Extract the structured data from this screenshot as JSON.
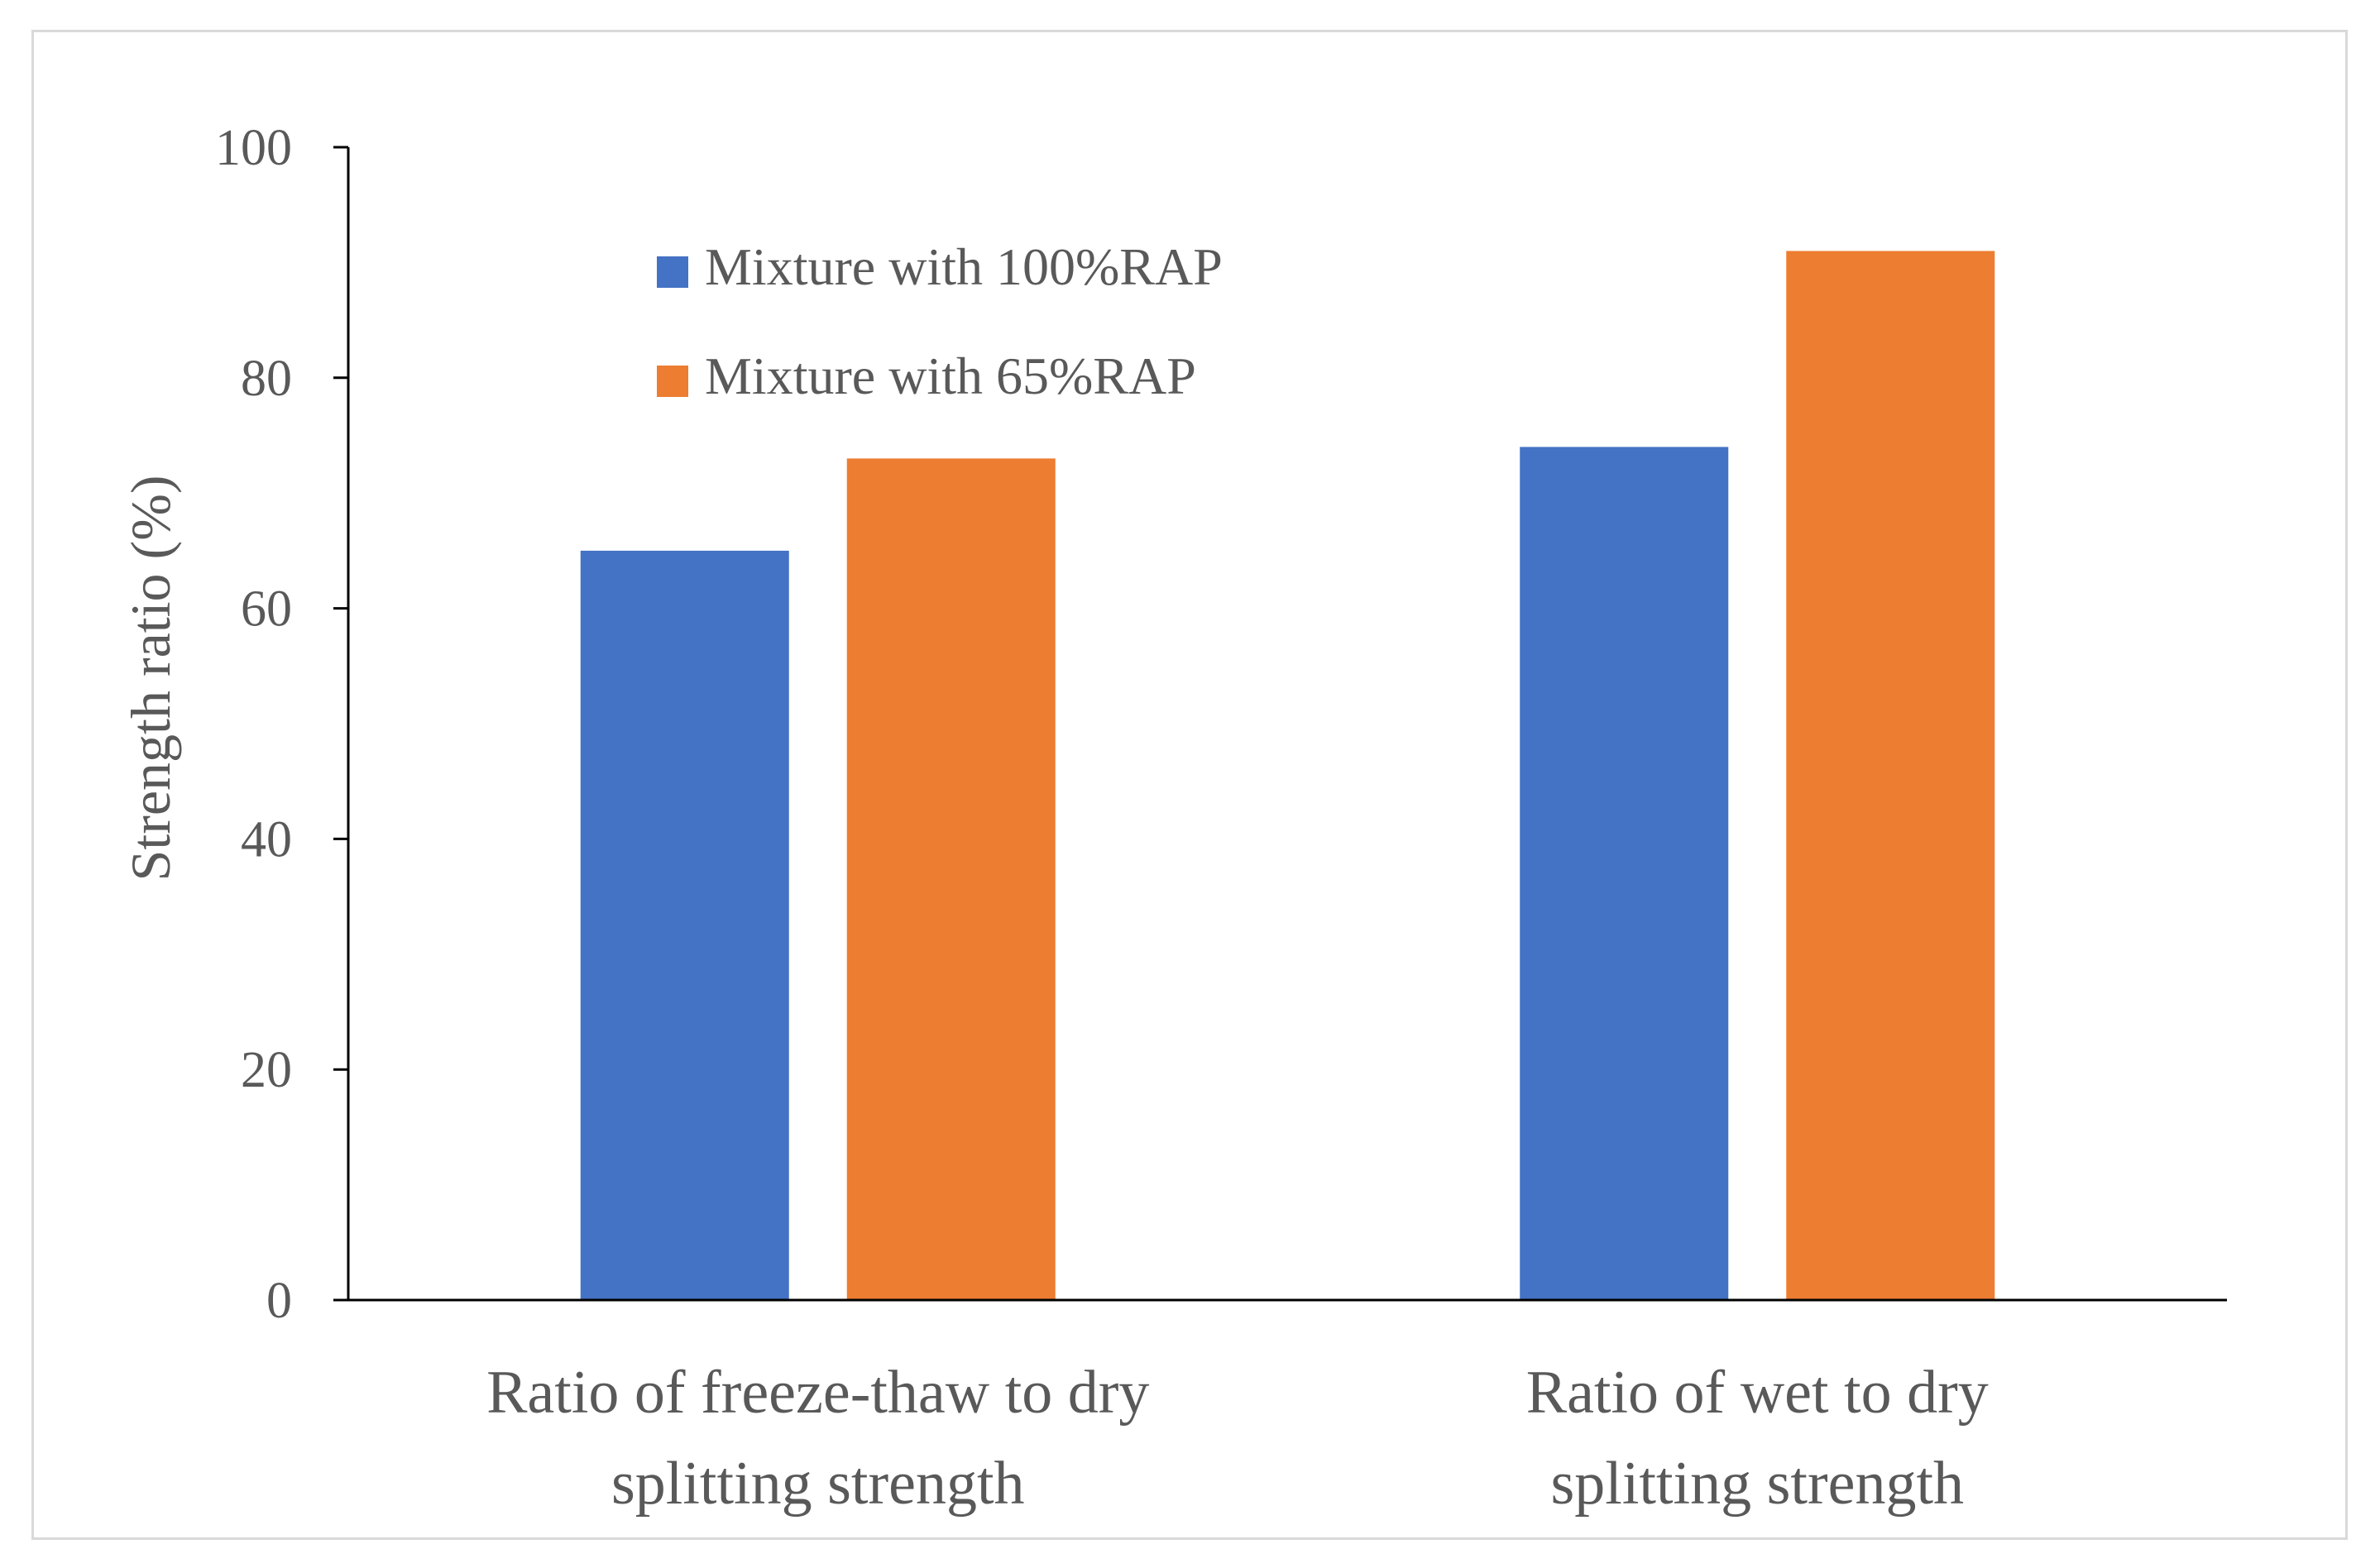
{
  "chart_data": {
    "type": "bar",
    "title": "",
    "xlabel": "",
    "ylabel": "Strength  ratio (%)",
    "ylim": [
      0,
      100
    ],
    "yticks": [
      0,
      20,
      40,
      60,
      80,
      100
    ],
    "grid": false,
    "legend_position": "top-center",
    "categories": [
      [
        "Ratio of freeze-thaw to dry",
        "splitting strength"
      ],
      [
        "Ratio of wet to dry",
        "splitting strength"
      ]
    ],
    "series": [
      {
        "name": "Mixture with 100%RAP",
        "color": "#4472c4",
        "values": [
          65,
          74
        ]
      },
      {
        "name": "Mixture with 65%RAP",
        "color": "#ed7d31",
        "values": [
          73,
          91
        ]
      }
    ]
  }
}
